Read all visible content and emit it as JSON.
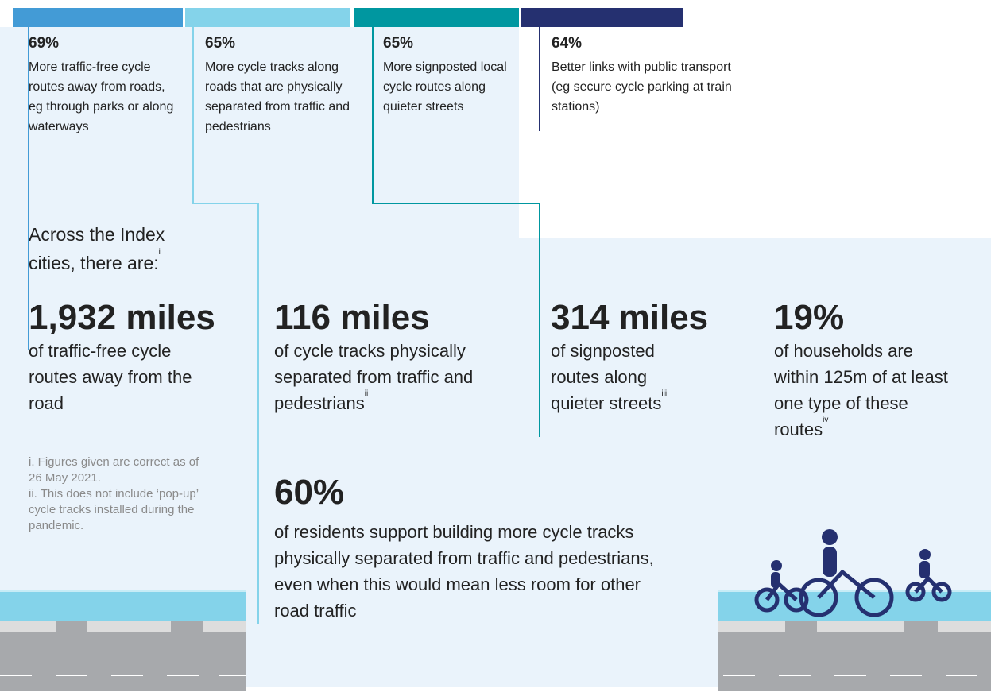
{
  "top_stats": [
    {
      "value": "69%",
      "text": "More traffic-free cycle routes away from roads, eg through parks or along waterways"
    },
    {
      "value": "65%",
      "text": "More cycle tracks along roads that are physically separated from traffic and pedestrians"
    },
    {
      "value": "65%",
      "text": "More signposted local cycle routes along quieter streets"
    },
    {
      "value": "64%",
      "text": "Better links with public transport (eg secure cycle parking at train stations)"
    }
  ],
  "intro": {
    "text": "Across the Index cities, there are:",
    "ref": "i"
  },
  "facts": [
    {
      "value": "1,932 miles",
      "text": "of traffic-free cycle routes away from the road",
      "ref": null
    },
    {
      "value": "116 miles",
      "text": "of cycle tracks physically separated from traffic and pedestrians",
      "ref": "ii"
    },
    {
      "value": "314 miles",
      "text": "of signposted routes along quieter streets",
      "ref": "iii"
    },
    {
      "value": "19%",
      "text": "of households are within 125m of at least one type of these routes",
      "ref": "iv"
    }
  ],
  "support": {
    "value": "60%",
    "text": "of residents support building more cycle tracks physically separated from traffic and pedestrians, even when this would mean less room for other road traffic"
  },
  "footnotes": [
    "i. Figures given are correct as of 26 May 2021.",
    "ii. This does not include ‘pop-up’ cycle tracks installed during the pandemic."
  ]
}
